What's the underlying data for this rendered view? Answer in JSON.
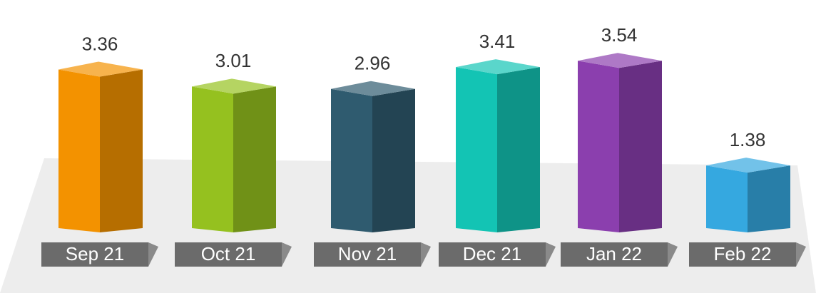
{
  "chart_data": {
    "type": "bar3d",
    "categories": [
      "Sep 21",
      "Oct 21",
      "Nov 21",
      "Dec 21",
      "Jan 22",
      "Feb 22"
    ],
    "values": [
      3.36,
      3.01,
      2.96,
      3.41,
      3.54,
      1.38
    ],
    "colors": [
      "#f39200",
      "#95c11f",
      "#2f5b6f",
      "#13c4b4",
      "#8b3fae",
      "#35a8e0"
    ]
  }
}
